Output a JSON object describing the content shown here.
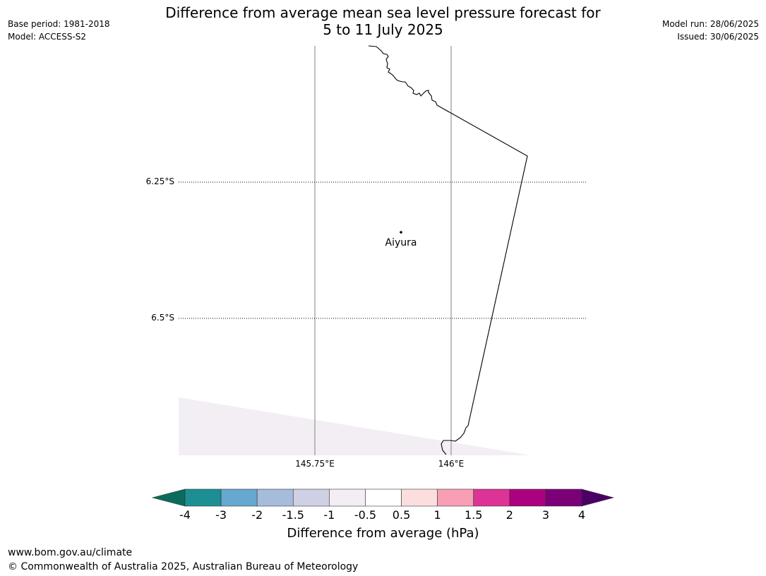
{
  "title": {
    "line1": "Difference from average mean sea level pressure forecast for",
    "line2": "5 to 11 July 2025"
  },
  "meta_left": {
    "base_period": "Base period: 1981-2018",
    "model": "Model: ACCESS-S2"
  },
  "meta_right": {
    "model_run": "Model run: 28/06/2025",
    "issued": "Issued: 30/06/2025"
  },
  "map": {
    "latitude_labels": [
      "6.25°S",
      "6.5°S"
    ],
    "longitude_labels": [
      "145.75°E",
      "146°E"
    ],
    "place": {
      "name": "Aiyura"
    },
    "colors": {
      "coastline": "#000000",
      "graticule_meridian": "#808080",
      "graticule_parallel": "#000000",
      "shaded_region": "#f3eef4"
    }
  },
  "colorbar": {
    "title": "Difference from average (hPa)",
    "ticks": [
      "-4",
      "-3",
      "-2",
      "-1.5",
      "-1",
      "-0.5",
      "0.5",
      "1",
      "1.5",
      "2",
      "3",
      "4"
    ],
    "colors": [
      "#1b8f94",
      "#66a8cf",
      "#a6bcdb",
      "#d0d0e4",
      "#f3eef4",
      "#ffffff",
      "#fddede",
      "#f89fb5",
      "#dd3296",
      "#ac017e",
      "#7b0077"
    ],
    "under_color": "#0a6b5c",
    "over_color": "#4b0066"
  },
  "footer": {
    "url": "www.bom.gov.au/climate",
    "copyright": "© Commonwealth of Australia 2025, Australian Bureau of Meteorology"
  }
}
